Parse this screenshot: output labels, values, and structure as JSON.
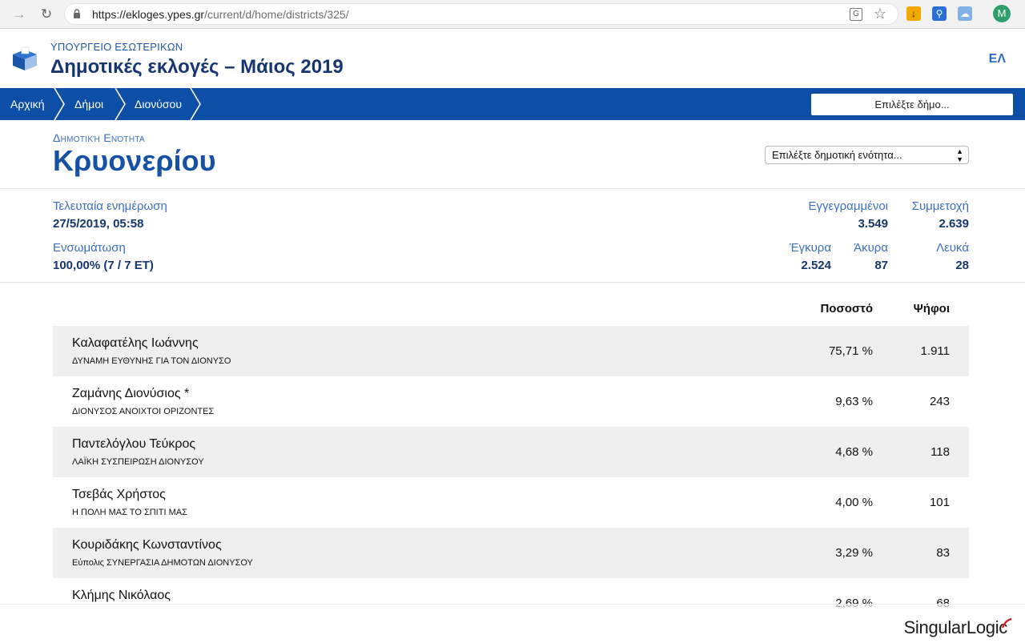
{
  "browser": {
    "url_host": "https://ekloges.ypes.gr",
    "url_path": "/current/d/home/districts/325/",
    "profile_initial": "M"
  },
  "header": {
    "ministry": "ΥΠΟΥΡΓΕΙΟ ΕΣΩΤΕΡΙΚΩΝ",
    "title": "Δημοτικές εκλογές – Μάιος 2019",
    "lang": "ΕΛ"
  },
  "breadcrumb": {
    "items": [
      "Αρχική",
      "Δήμοι",
      "Διονύσου"
    ],
    "dimos_select": "Επιλέξτε δήμο..."
  },
  "unit": {
    "label": "Δημοτική Ενότητα",
    "name": "Κρυονερίου",
    "select": "Επιλέξτε δημοτική ενότητα..."
  },
  "stats": {
    "last_update_label": "Τελευταία ενημέρωση",
    "last_update_value": "27/5/2019, 05:58",
    "integration_label": "Ενσωμάτωση",
    "integration_value": "100,00% (7 / 7 ΕΤ)",
    "registered_label": "Εγγεγραμμένοι",
    "registered_value": "3.549",
    "turnout_label": "Συμμετοχή",
    "turnout_value": "2.639",
    "valid_label": "Έγκυρα",
    "valid_value": "2.524",
    "invalid_label": "Άκυρα",
    "invalid_value": "87",
    "blank_label": "Λευκά",
    "blank_value": "28"
  },
  "results": {
    "headers": {
      "percent": "Ποσοστό",
      "votes": "Ψήφοι"
    },
    "rows": [
      {
        "candidate": "Καλαφατέλης Ιωάννης",
        "party": "ΔΥΝΑΜΗ ΕΥΘΥΝΗΣ ΓΙΑ ΤΟΝ ΔΙΟΝΥΣΟ",
        "percent": "75,71 %",
        "votes": "1.911"
      },
      {
        "candidate": "Ζαμάνης Διονύσιος *",
        "party": "ΔΙΟΝΥΣΟΣ ΑΝΟΙΧΤΟΙ ΟΡΙΖΟΝΤΕΣ",
        "percent": "9,63 %",
        "votes": "243"
      },
      {
        "candidate": "Παντελόγλου Τεύκρος",
        "party": "ΛΑΪΚΗ ΣΥΣΠΕΙΡΩΣΗ ΔΙΟΝΥΣΟΥ",
        "percent": "4,68 %",
        "votes": "118"
      },
      {
        "candidate": "Τσεβάς Χρήστος",
        "party": "Η ΠΟΛΗ ΜΑΣ ΤΟ ΣΠΙΤΙ ΜΑΣ",
        "percent": "4,00 %",
        "votes": "101"
      },
      {
        "candidate": "Κουριδάκης Κωνσταντίνος",
        "party": "Εύπολις ΣΥΝΕΡΓΑΣΙΑ ΔΗΜΟΤΩΝ ΔΙΟΝΥΣΟΥ",
        "percent": "3,29 %",
        "votes": "83"
      },
      {
        "candidate": "Κλήμης Νικόλαος",
        "party": "",
        "percent": "2,69 %",
        "votes": "68"
      }
    ]
  },
  "footer": {
    "brand_a": "Singular",
    "brand_b": "Logic"
  }
}
